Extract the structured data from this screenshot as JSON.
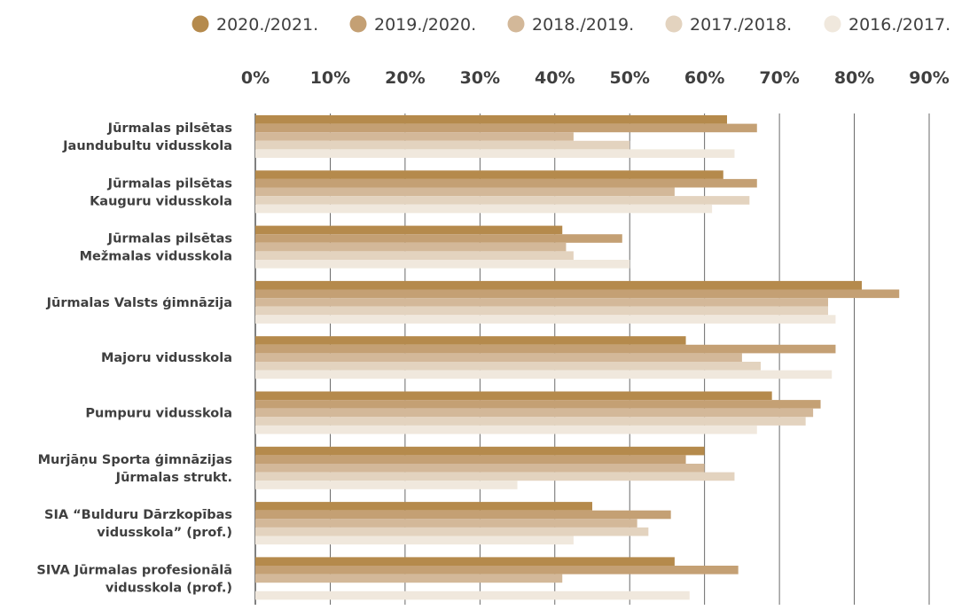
{
  "chart_data": {
    "type": "bar",
    "orientation": "horizontal",
    "title": "",
    "xlabel": "",
    "ylabel": "",
    "xlim": [
      0,
      90
    ],
    "x_ticks": [
      "0%",
      "10%",
      "20%",
      "30%",
      "40%",
      "50%",
      "60%",
      "70%",
      "80%",
      "90%"
    ],
    "grid": "vertical",
    "legend_position": "top-right",
    "categories": [
      [
        "Jūrmalas pilsētas",
        "Jaundubultu vidusskola"
      ],
      [
        "Jūrmalas pilsētas",
        "Kauguru vidusskola"
      ],
      [
        "Jūrmalas pilsētas",
        "Mežmalas vidusskola"
      ],
      [
        "Jūrmalas Valsts ģimnāzija"
      ],
      [
        "Majoru vidusskola"
      ],
      [
        "Pumpuru vidusskola"
      ],
      [
        "Murjāņu Sporta ģimnāzijas",
        "Jūrmalas strukt."
      ],
      [
        "SIA “Bulduru Dārzkopības",
        "vidusskola” (prof.)"
      ],
      [
        "SIVA Jūrmalas profesionālā",
        "vidusskola (prof.)"
      ]
    ],
    "series": [
      {
        "name": "2020./2021.",
        "color": "#b58a4c",
        "values": [
          63,
          62.5,
          41,
          81,
          57.5,
          69,
          60,
          45,
          56
        ]
      },
      {
        "name": "2019./2020.",
        "color": "#c4a074",
        "values": [
          67,
          67,
          49,
          86,
          77.5,
          75.5,
          57.5,
          55.5,
          64.5
        ]
      },
      {
        "name": "2018./2019.",
        "color": "#d3b899",
        "values": [
          42.5,
          56,
          41.5,
          76.5,
          65,
          74.5,
          60,
          51,
          41
        ]
      },
      {
        "name": "2017./2018.",
        "color": "#e3d3bf",
        "values": [
          50,
          66,
          42.5,
          76.5,
          67.5,
          73.5,
          64,
          52.5,
          0
        ]
      },
      {
        "name": "2016./2017.",
        "color": "#f0e8dd",
        "values": [
          64,
          61,
          50,
          77.5,
          77,
          67,
          35,
          42.5,
          58
        ]
      }
    ]
  }
}
